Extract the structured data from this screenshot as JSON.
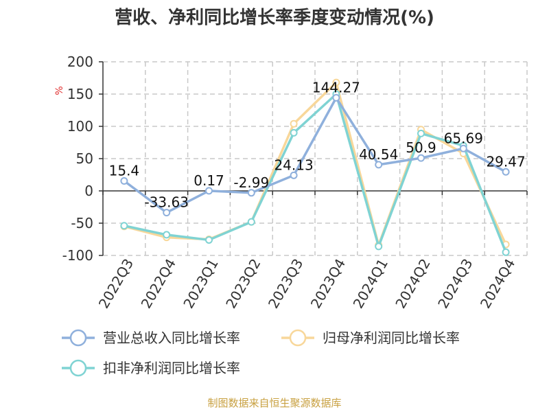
{
  "source": "制图数据来自恒生聚源数据库",
  "colors": {
    "revenue": "#8fb0dc",
    "net_profit": "#f8d79a",
    "deducted_net_profit": "#7fd3d3",
    "grid": "#c8c8c8",
    "axis": "#333333",
    "unit": "#e03030",
    "source": "#c8a040"
  },
  "chart_data": {
    "type": "line",
    "title": "营收、净利同比增长率季度变动情况(%)",
    "ylabel": "%",
    "xlabel": "",
    "ylim": [
      -100,
      200
    ],
    "yticks": [
      -100,
      -50,
      0,
      50,
      100,
      150,
      200
    ],
    "grid": true,
    "legend_position": "bottom",
    "categories": [
      "2022Q3",
      "2022Q4",
      "2023Q1",
      "2023Q2",
      "2023Q3",
      "2023Q4",
      "2024Q1",
      "2024Q2",
      "2024Q3",
      "2024Q4"
    ],
    "series": [
      {
        "key": "revenue",
        "name": "营业总收入同比增长率",
        "values": [
          15.4,
          -33.63,
          0.17,
          -2.99,
          24.13,
          144.27,
          40.54,
          50.9,
          65.69,
          29.47
        ],
        "labels": [
          "15.4",
          "-33.63",
          "0.17",
          "-2.99",
          "24.13",
          "144.27",
          "40.54",
          "50.9",
          "65.69",
          "29.47"
        ]
      },
      {
        "key": "net_profit",
        "name": "归母净利润同比增长率",
        "values": [
          -55,
          -72,
          -75,
          -48,
          104,
          168,
          -84,
          95,
          58,
          -83
        ]
      },
      {
        "key": "deducted_net_profit",
        "name": "扣非净利润同比增长率",
        "values": [
          -54,
          -68,
          -76,
          -48,
          90,
          150,
          -86,
          89,
          70,
          -95
        ]
      }
    ]
  }
}
